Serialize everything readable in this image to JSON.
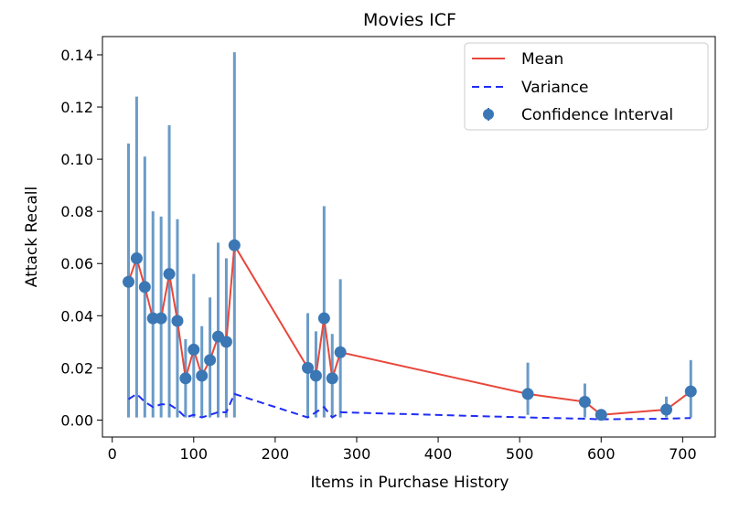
{
  "chart_data": {
    "type": "line",
    "title": "Movies ICF",
    "xlabel": "Items in Purchase History",
    "ylabel": "Attack Recall",
    "xlim": [
      -12,
      740
    ],
    "ylim": [
      -0.0065,
      0.147
    ],
    "xticks": [
      "0",
      "100",
      "200",
      "300",
      "400",
      "500",
      "600",
      "700"
    ],
    "yticks": [
      "0.00",
      "0.02",
      "0.04",
      "0.06",
      "0.08",
      "0.10",
      "0.12",
      "0.14"
    ],
    "grid": false,
    "legend_position": "top-right",
    "legend": [
      "Mean",
      "Variance",
      "Confidence Interval"
    ],
    "colors": {
      "mean": "#e8473b",
      "variance": "#1f2df5",
      "ci": "#3b77b4",
      "errorbar": "#6a9bc9"
    },
    "x": [
      20,
      30,
      40,
      50,
      60,
      70,
      80,
      90,
      100,
      110,
      120,
      130,
      140,
      150,
      240,
      250,
      260,
      270,
      280,
      510,
      580,
      600,
      680,
      710
    ],
    "series": [
      {
        "name": "Mean",
        "values": [
          0.053,
          0.062,
          0.051,
          0.039,
          0.039,
          0.056,
          0.038,
          0.016,
          0.027,
          0.017,
          0.023,
          0.032,
          0.03,
          0.067,
          0.02,
          0.017,
          0.039,
          0.016,
          0.026,
          0.01,
          0.007,
          0.002,
          0.004,
          0.011
        ]
      },
      {
        "name": "Variance",
        "values": [
          0.008,
          0.01,
          0.007,
          0.005,
          0.006,
          0.006,
          0.004,
          0.001,
          0.002,
          0.001,
          0.002,
          0.003,
          0.003,
          0.01,
          0.001,
          0.003,
          0.005,
          0.001,
          0.003,
          0.001,
          0.0005,
          0.0003,
          0.0005,
          0.0008
        ]
      },
      {
        "name": "Confidence Interval",
        "lower": [
          0.001,
          0.001,
          0.001,
          0.001,
          0.001,
          0.001,
          0.001,
          0.001,
          0.001,
          0.001,
          0.001,
          0.001,
          0.001,
          0.001,
          0.001,
          0.001,
          0.001,
          0.001,
          0.001,
          0.002,
          0.001,
          0.001,
          0.001,
          0.001
        ],
        "upper": [
          0.106,
          0.124,
          0.101,
          0.08,
          0.078,
          0.113,
          0.077,
          0.031,
          0.056,
          0.036,
          0.047,
          0.068,
          0.062,
          0.141,
          0.041,
          0.034,
          0.082,
          0.033,
          0.054,
          0.022,
          0.014,
          0.003,
          0.009,
          0.023
        ]
      }
    ]
  }
}
